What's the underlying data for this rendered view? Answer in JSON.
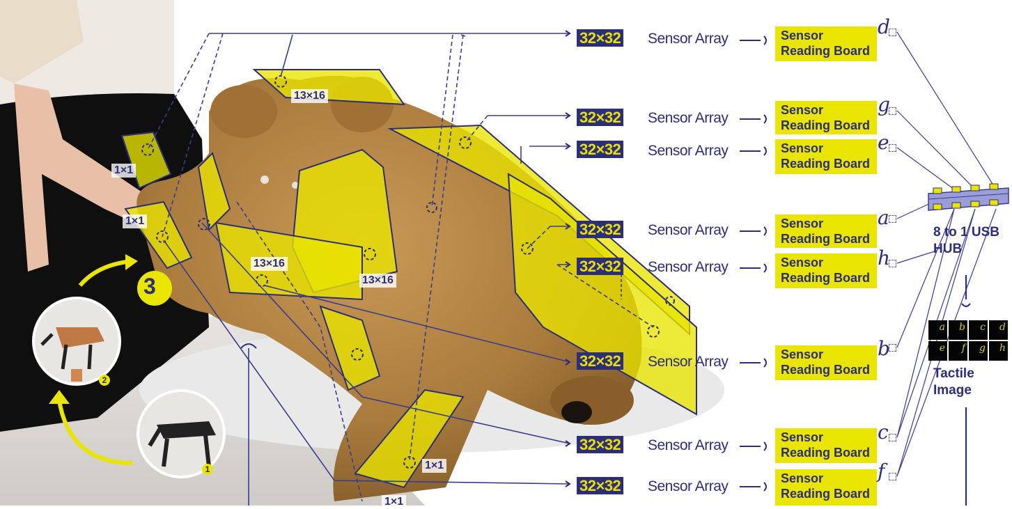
{
  "colors": {
    "accent_yellow": "#e9e400",
    "navy": "#2c2e7a",
    "line": "#3a3c8c"
  },
  "patches": [
    "13×16",
    "1×1",
    "1×1",
    "13×16",
    "13×16",
    "1×1",
    "1×1"
  ],
  "sensor_rows": [
    {
      "array": "32×32",
      "text": "Sensor Array",
      "board": "Sensor Reading Board",
      "letter": "d"
    },
    {
      "array": "32×32",
      "text": "Sensor Array",
      "board": "Sensor Reading Board",
      "letter": "g"
    },
    {
      "array": "32×32",
      "text": "Sensor Array",
      "board": "Sensor Reading Board",
      "letter": "e"
    },
    {
      "array": "32×32",
      "text": "Sensor Array",
      "board": "Sensor Reading Board",
      "letter": "a"
    },
    {
      "array": "32×32",
      "text": "Sensor Array",
      "board": "Sensor Reading Board",
      "letter": "h"
    },
    {
      "array": "32×32",
      "text": "Sensor Array",
      "board": "Sensor Reading Board",
      "letter": "b"
    },
    {
      "array": "32×32",
      "text": "Sensor Array",
      "board": "Sensor Reading Board",
      "letter": "c"
    },
    {
      "array": "32×32",
      "text": "Sensor Array",
      "board": "Sensor Reading Board",
      "letter": "f"
    }
  ],
  "hub_label": "8 to 1 USB HUB",
  "tactile_label": "Tactile Image",
  "tactile_grid": [
    "a",
    "b",
    "c",
    "d",
    "e",
    "f",
    "g",
    "h"
  ],
  "steps": [
    "3",
    "2",
    "1"
  ]
}
